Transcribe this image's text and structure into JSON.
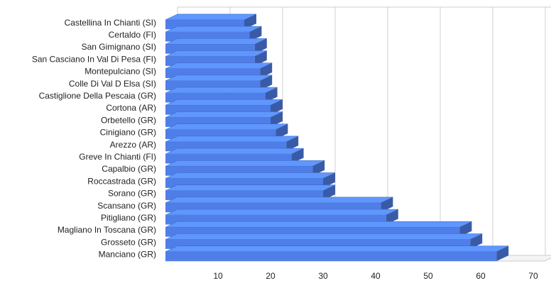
{
  "chart_data": {
    "type": "bar",
    "orientation": "horizontal",
    "categories": [
      "Castellina In Chianti (SI)",
      "Certaldo (FI)",
      "San Gimignano (SI)",
      "San Casciano In Val Di Pesa (FI)",
      "Montepulciano (SI)",
      "Colle Di Val D Elsa (SI)",
      "Castiglione Della Pescaia (GR)",
      "Cortona (AR)",
      "Orbetello (GR)",
      "Cinigiano (GR)",
      "Arezzo (AR)",
      "Greve In Chianti (FI)",
      "Capalbio (GR)",
      "Roccastrada (GR)",
      "Sorano (GR)",
      "Scansano (GR)",
      "Pitigliano (GR)",
      "Magliano In Toscana (GR)",
      "Grosseto (GR)",
      "Manciano (GR)"
    ],
    "values": [
      15,
      16,
      17,
      17,
      18,
      18,
      19,
      20,
      20,
      21,
      23,
      24,
      28,
      30,
      30,
      41,
      42,
      56,
      58,
      63
    ],
    "color": "#4f7ee8",
    "xlim": [
      0,
      70
    ],
    "xticks": [
      10,
      20,
      30,
      40,
      50,
      60,
      70
    ],
    "grid": true
  }
}
